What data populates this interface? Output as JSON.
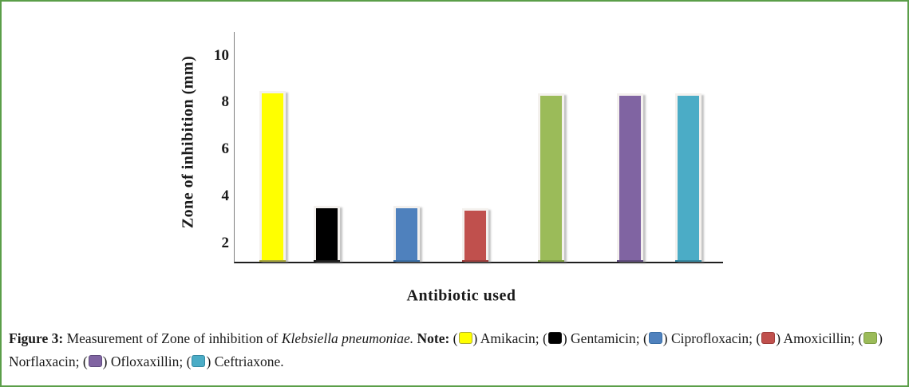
{
  "page": {
    "background": "#ffffff",
    "border_color": "#5b9e49"
  },
  "chart_data": {
    "type": "bar",
    "title": "",
    "xlabel": "Antibiotic used",
    "ylabel": "Zone of inhibition (mm)",
    "categories": [
      "Amikacin",
      "Gentamicin",
      "Ciprofloxacin",
      "Amoxicillin",
      "Norflaxacin",
      "Ofloxaxillin",
      "Ceftriaxone"
    ],
    "values": [
      8.3,
      3.4,
      3.4,
      3.3,
      8.2,
      8.2,
      8.2
    ],
    "bar_colors": [
      "#ffff00",
      "#000000",
      "#4f81bd",
      "#c0504d",
      "#9bbb59",
      "#8064a2",
      "#4bacc6"
    ],
    "bar_edge_colors": [
      "#aaa93a",
      "#1a1a1a",
      "#3a6ea5",
      "#9e3d3b",
      "#7e9d43",
      "#5f4b7d",
      "#3589a2"
    ],
    "yticks": [
      2,
      4,
      6,
      8,
      10
    ],
    "ylim": [
      1.2,
      11.0
    ],
    "grid": false,
    "legend_position": "in-caption-below"
  },
  "caption": {
    "figure_label": "Figure 3:",
    "lead_text": " Measurement of Zone of inhibition of ",
    "species_italic": "Klebsiella pneumoniae.",
    "note_label": " Note: ",
    "swatch_open": "(",
    "swatch_close": ")",
    "legend_separator": "; ",
    "legend_terminator": "."
  }
}
